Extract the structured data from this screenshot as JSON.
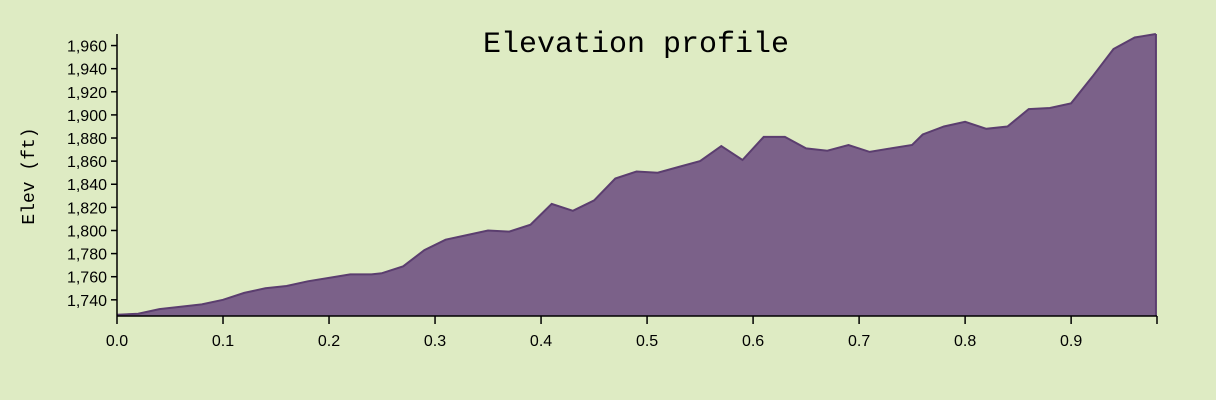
{
  "chart_data": {
    "type": "area",
    "title": "Elevation profile",
    "xlabel": "",
    "ylabel": "Elev (ft)",
    "xlim": [
      0,
      0.981
    ],
    "ylim": [
      1726,
      1970
    ],
    "grid": false,
    "xticks": [
      0.0,
      0.1,
      0.2,
      0.3,
      0.4,
      0.5,
      0.6,
      0.7,
      0.8,
      0.9
    ],
    "xtick_labels": [
      "0.0",
      "0.1",
      "0.2",
      "0.3",
      "0.4",
      "0.5",
      "0.6",
      "0.7",
      "0.8",
      "0.9"
    ],
    "yticks": [
      1740,
      1760,
      1780,
      1800,
      1820,
      1840,
      1860,
      1880,
      1900,
      1920,
      1940,
      1960
    ],
    "ytick_labels": [
      "1,740",
      "1,760",
      "1,780",
      "1,800",
      "1,820",
      "1,840",
      "1,860",
      "1,880",
      "1,900",
      "1,920",
      "1,940",
      "1,960"
    ],
    "series": [
      {
        "x": [
          0.0,
          0.02,
          0.04,
          0.06,
          0.08,
          0.1,
          0.12,
          0.14,
          0.16,
          0.18,
          0.2,
          0.22,
          0.24,
          0.25,
          0.27,
          0.29,
          0.31,
          0.33,
          0.35,
          0.37,
          0.39,
          0.41,
          0.43,
          0.45,
          0.47,
          0.49,
          0.51,
          0.53,
          0.55,
          0.57,
          0.59,
          0.61,
          0.63,
          0.65,
          0.67,
          0.69,
          0.71,
          0.73,
          0.75,
          0.76,
          0.78,
          0.8,
          0.82,
          0.84,
          0.86,
          0.88,
          0.9,
          0.92,
          0.94,
          0.96,
          0.98
        ],
        "y": [
          1727,
          1728,
          1732,
          1734,
          1736,
          1740,
          1746,
          1750,
          1752,
          1756,
          1759,
          1762,
          1762,
          1763,
          1769,
          1783,
          1792,
          1796,
          1800,
          1799,
          1805,
          1823,
          1817,
          1826,
          1845,
          1851,
          1850,
          1855,
          1860,
          1873,
          1861,
          1881,
          1881,
          1871,
          1869,
          1874,
          1868,
          1871,
          1874,
          1883,
          1890,
          1894,
          1888,
          1890,
          1905,
          1906,
          1910,
          1933,
          1957,
          1967,
          1970
        ]
      }
    ],
    "fill_color": "#7b6189",
    "line_color": "#5b3e6f",
    "background_color": "#deebc3"
  }
}
